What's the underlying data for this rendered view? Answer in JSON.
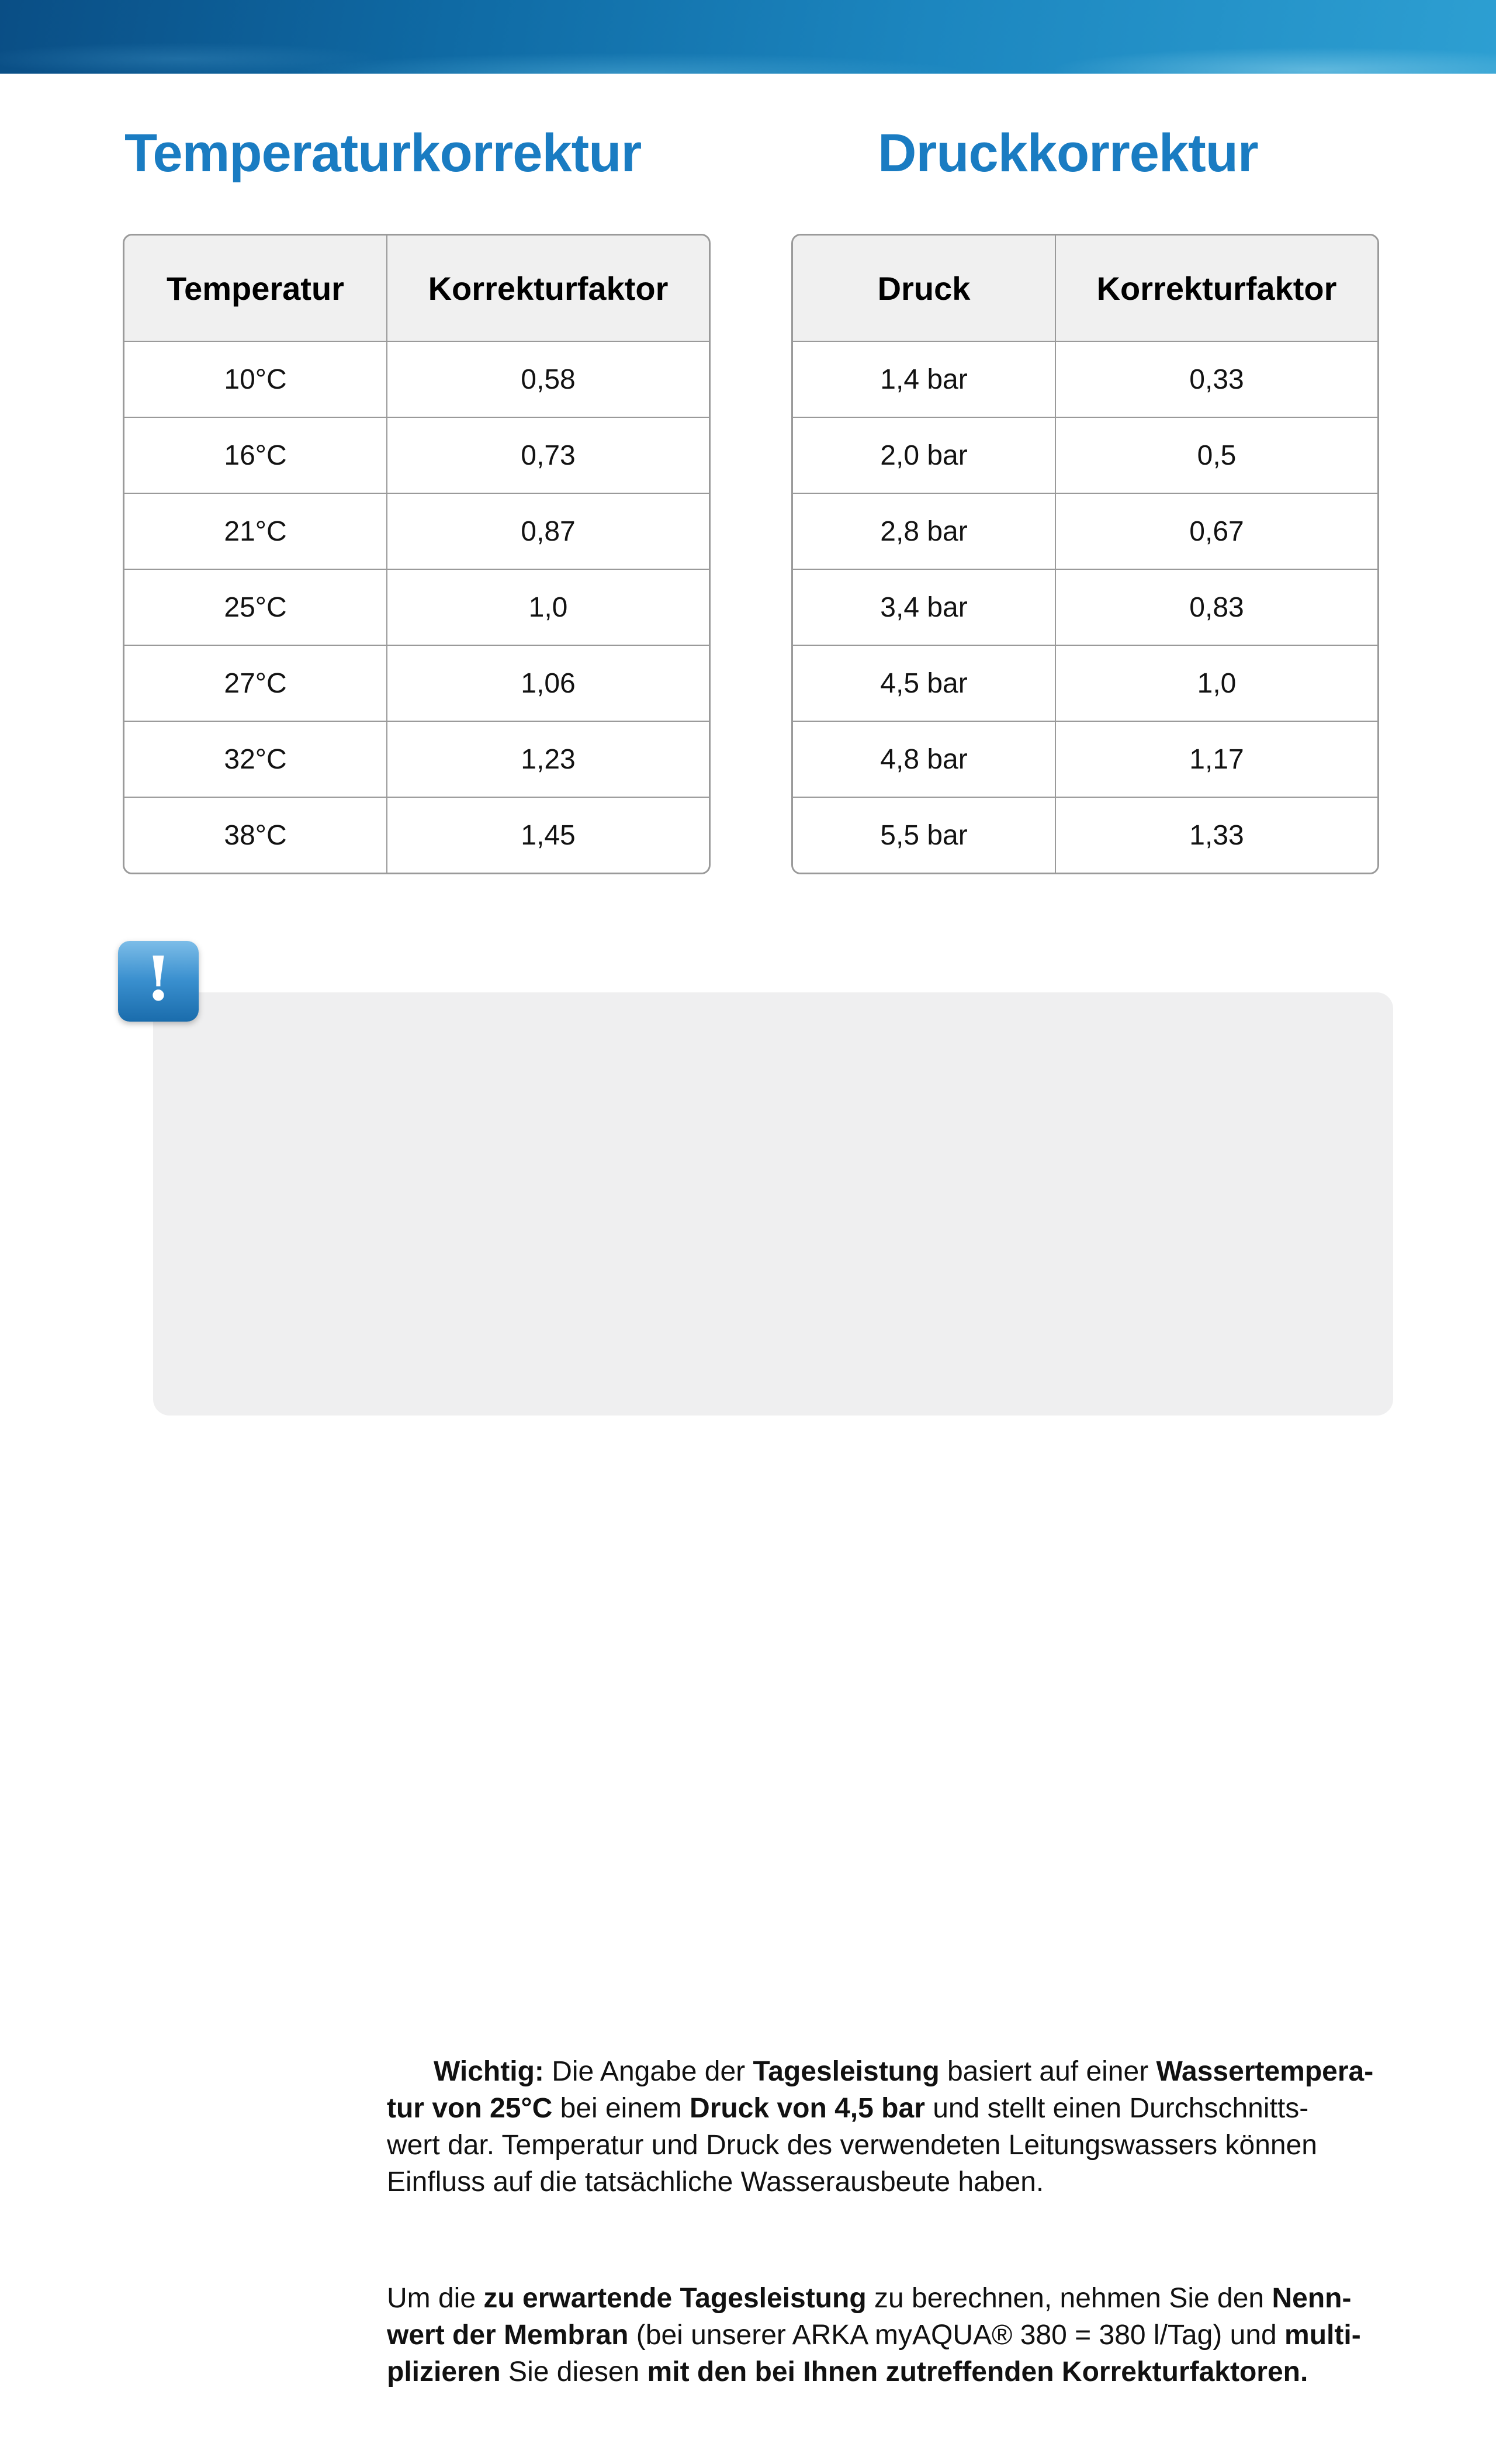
{
  "banner": {
    "label": "ocean water photo banner"
  },
  "colors": {
    "heading_blue": "#1a7cc2",
    "table_border_gray": "#9a9a9a",
    "table_header_bg": "#f0f0f0",
    "info_box_bg": "#efeff0",
    "alert_icon_blue": "#2e86c8",
    "banner_blue_dark": "#0a4e85",
    "banner_blue_light": "#2d9fd2"
  },
  "sections": {
    "temperature": {
      "title": "Temperaturkorrektur",
      "table": {
        "headers": [
          "Temperatur",
          "Korrekturfaktor"
        ],
        "rows": [
          [
            "10°C",
            "0,58"
          ],
          [
            "16°C",
            "0,73"
          ],
          [
            "21°C",
            "0,87"
          ],
          [
            "25°C",
            "1,0"
          ],
          [
            "27°C",
            "1,06"
          ],
          [
            "32°C",
            "1,23"
          ],
          [
            "38°C",
            "1,45"
          ]
        ]
      }
    },
    "pressure": {
      "title": "Druckkorrektur",
      "table": {
        "headers": [
          "Druck",
          "Korrekturfaktor"
        ],
        "rows": [
          [
            "1,4 bar",
            "0,33"
          ],
          [
            "2,0 bar",
            "0,5"
          ],
          [
            "2,8 bar",
            "0,67"
          ],
          [
            "3,4 bar",
            "0,83"
          ],
          [
            "4,5 bar",
            "1,0"
          ],
          [
            "4,8 bar",
            "1,17"
          ],
          [
            "5,5 bar",
            "1,33"
          ]
        ]
      }
    }
  },
  "info": {
    "icon": "exclamation-alert-icon",
    "icon_glyph": "!",
    "paragraphs": [
      [
        {
          "text": "Wichtig:",
          "bold": true
        },
        {
          "text": " Die Angabe der ",
          "bold": false
        },
        {
          "text": "Tagesleistung",
          "bold": true
        },
        {
          "text": " basiert auf einer ",
          "bold": false
        },
        {
          "text": "Wassertempera-\ntur von 25°C",
          "bold": true
        },
        {
          "text": " bei einem ",
          "bold": false
        },
        {
          "text": "Druck von 4,5 bar",
          "bold": true
        },
        {
          "text": " und stellt einen Durchschnitts-\nwert dar. Temperatur und Druck des verwendeten Leitungswassers können\nEinfluss auf die tatsächliche Wasserausbeute haben.",
          "bold": false
        }
      ],
      [
        {
          "text": "Um die ",
          "bold": false
        },
        {
          "text": "zu erwartende Tagesleistung",
          "bold": true
        },
        {
          "text": " zu berechnen, nehmen Sie den ",
          "bold": false
        },
        {
          "text": "Nenn-\nwert der Membran",
          "bold": true
        },
        {
          "text": " (bei unserer ARKA myAQUA® 380 = 380 l/Tag) und ",
          "bold": false
        },
        {
          "text": "multi-\nplizieren",
          "bold": true
        },
        {
          "text": " Sie diesen ",
          "bold": false
        },
        {
          "text": "mit den bei Ihnen zutreffenden Korrekturfaktoren.",
          "bold": true
        }
      ]
    ]
  }
}
